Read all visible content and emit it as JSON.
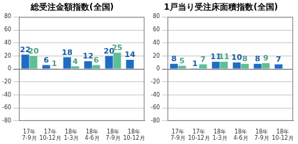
{
  "chart_data": [
    {
      "type": "bar",
      "title": "総受注金額指数(全国)",
      "categories": [
        "17年 7-9月",
        "17年 10-12月",
        "18年 1-3月",
        "18年 4-6月",
        "18年 7-9月",
        "18年 10-12月"
      ],
      "series": [
        {
          "color": "#1f6cc4",
          "values": [
            22,
            6,
            18,
            12,
            20,
            14
          ]
        },
        {
          "color": "#5cbf98",
          "values": [
            20,
            1,
            4,
            6,
            25,
            null
          ]
        }
      ],
      "ylim": [
        -80,
        80
      ],
      "yticks": [
        -80,
        -60,
        -40,
        -20,
        0,
        20,
        40,
        60,
        80
      ],
      "grid": true,
      "data_labels": true
    },
    {
      "type": "bar",
      "title": "1戸当り受注床面積指数(全国)",
      "categories": [
        "17年 7-9月",
        "17年 10-12月",
        "18年 1-3月",
        "18年 4-6月",
        "18年 7-9月",
        "18年 10-12月"
      ],
      "series": [
        {
          "color": "#1f6cc4",
          "values": [
            8,
            1,
            11,
            10,
            8,
            7
          ]
        },
        {
          "color": "#5cbf98",
          "values": [
            5,
            7,
            11,
            8,
            9,
            null
          ]
        }
      ],
      "ylim": [
        -80,
        80
      ],
      "yticks": [
        -80,
        -60,
        -40,
        -20,
        0,
        20,
        40,
        60,
        80
      ],
      "grid": true,
      "data_labels": true
    }
  ]
}
